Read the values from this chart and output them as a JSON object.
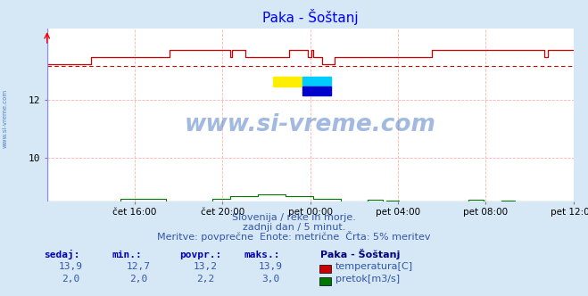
{
  "title": "Paka - Šoštanj",
  "background_color": "#d6e8f5",
  "plot_bg_color": "#ffffff",
  "x_labels": [
    "čet 16:00",
    "čet 20:00",
    "pet 00:00",
    "pet 04:00",
    "pet 08:00",
    "pet 12:00"
  ],
  "y_ticks": [
    10,
    12
  ],
  "y_min": 8.5,
  "y_max": 14.5,
  "temp_avg": 13.2,
  "temp_min": 12.7,
  "temp_max": 13.9,
  "flow_avg": 2.2,
  "flow_min": 2.0,
  "flow_max": 3.0,
  "temp_color": "#cc0000",
  "flow_color": "#007700",
  "dashed_line_color": "#cc0000",
  "grid_color": "#ffb0b0",
  "axis_line_color": "#8888ff",
  "watermark_color": "#3366bb",
  "subtitle1": "Slovenija / reke in morje.",
  "subtitle2": "zadnji dan / 5 minut.",
  "subtitle3": "Meritve: povprečne  Enote: metrične  Črta: 5% meritev",
  "table_headers": [
    "sedaj:",
    "min.:",
    "povpr.:",
    "maks.:"
  ],
  "station_label": "Paka - Šoštanj",
  "legend_temp": "temperatura[C]",
  "legend_flow": "pretok[m3/s]",
  "row1_vals": [
    "13,9",
    "12,7",
    "13,2",
    "13,9"
  ],
  "row2_vals": [
    "2,0",
    "2,0",
    "2,2",
    "3,0"
  ],
  "n_points": 288,
  "logo_yellow": "#ffee00",
  "logo_cyan": "#00ccff",
  "logo_blue": "#0000cc"
}
